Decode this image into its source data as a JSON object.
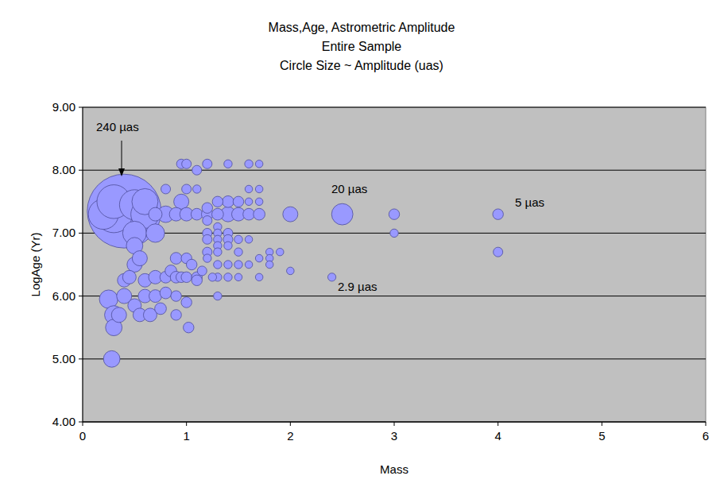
{
  "chart_data": {
    "type": "bubble",
    "title": "Mass,Age, Astrometric Amplitude",
    "subtitle": [
      "Entire Sample",
      "Circle Size ~ Amplitude (uas)"
    ],
    "x_label": "Mass",
    "y_label": "LogAge (Yr)",
    "annotations": [
      "240 µas",
      "20 µas",
      "5 µas",
      "2.9 µas"
    ],
    "xlim": [
      0,
      6
    ],
    "xticks": [
      0,
      1,
      2,
      3,
      4,
      5,
      6
    ],
    "ylim": [
      4,
      9
    ],
    "yticks": [
      {
        "value": 4,
        "label": "4.00"
      },
      {
        "value": 5,
        "label": "5.00"
      },
      {
        "value": 6,
        "label": "6.00"
      },
      {
        "value": 7,
        "label": "7.00"
      },
      {
        "value": 8,
        "label": "8.00"
      },
      {
        "value": 9,
        "label": "9.00"
      }
    ],
    "grid": true,
    "series": [
      {
        "color": "#9999ff",
        "x": [
          0.4,
          0.3,
          0.2,
          0.3,
          0.5,
          0.6,
          0.6,
          0.5,
          0.7,
          2.5,
          0.25,
          0.3,
          0.3,
          0.28,
          0.5,
          0.8,
          0.35,
          0.4,
          0.5,
          0.55,
          0.95,
          1.4,
          2.0,
          0.4,
          0.45,
          0.5,
          0.55,
          0.6,
          0.6,
          0.65,
          0.7,
          0.7,
          0.9,
          1.0,
          1.5,
          0.7,
          0.75,
          0.8,
          0.8,
          0.85,
          0.9,
          0.9,
          0.9,
          1.1,
          1.2,
          1.3,
          1.4,
          1.6,
          1.7,
          0.95,
          0.9,
          1.0,
          1.0,
          1.0,
          1.02,
          1.05,
          1.1,
          1.1,
          1.3,
          1.5,
          1.2,
          3.0,
          4.0,
          0.95,
          1.0,
          1.2,
          1.1,
          0.8,
          1.0,
          1.15,
          1.2,
          1.2,
          1.2,
          1.2,
          1.4,
          1.4,
          4.0,
          1.4,
          1.1,
          1.4,
          1.2,
          3.0,
          1.3,
          1.3,
          1.3,
          1.3,
          1.3,
          1.3,
          1.3,
          1.3,
          1.4,
          1.4,
          1.5,
          1.5,
          1.5,
          1.25,
          2.4,
          1.6,
          1.7,
          1.6,
          1.7,
          1.6,
          1.6,
          1.7,
          1.7,
          1.5,
          1.6,
          1.7,
          1.8,
          1.8,
          1.8,
          1.9,
          2.0
        ],
        "values": [
          7.35,
          7.3,
          7.3,
          7.5,
          7.45,
          7.3,
          7.5,
          7.0,
          7.0,
          7.3,
          5.95,
          5.7,
          5.5,
          5.0,
          6.8,
          7.3,
          5.7,
          6.0,
          6.5,
          6.6,
          7.5,
          7.3,
          7.3,
          6.25,
          6.3,
          5.85,
          5.7,
          6.0,
          6.25,
          5.7,
          6.3,
          7.3,
          7.3,
          7.3,
          7.3,
          6.0,
          5.8,
          6.3,
          6.05,
          6.4,
          6.3,
          6.6,
          6.0,
          7.3,
          7.3,
          7.3,
          7.5,
          7.3,
          7.3,
          6.3,
          5.7,
          6.6,
          6.3,
          5.9,
          5.5,
          6.5,
          6.3,
          6.25,
          7.5,
          7.5,
          7.4,
          7.3,
          7.3,
          8.1,
          8.1,
          8.1,
          8.0,
          7.7,
          7.7,
          6.4,
          7.2,
          7.0,
          6.9,
          6.7,
          7.0,
          6.9,
          6.7,
          8.1,
          7.7,
          6.8,
          6.6,
          7.0,
          7.1,
          7.0,
          6.9,
          6.8,
          6.7,
          6.5,
          6.3,
          6.0,
          6.5,
          6.3,
          6.9,
          6.7,
          6.5,
          6.3,
          6.3,
          8.1,
          8.1,
          7.7,
          7.7,
          6.9,
          6.5,
          6.6,
          6.3,
          6.3,
          7.5,
          7.5,
          6.7,
          6.6,
          6.5,
          6.7,
          6.4
        ],
        "sizes": [
          240,
          60,
          40,
          50,
          40,
          35,
          30,
          25,
          15,
          20,
          15,
          15,
          12,
          12,
          12,
          12,
          10,
          10,
          10,
          10,
          10,
          10,
          10,
          8,
          8,
          8,
          8,
          8,
          8,
          8,
          8,
          8,
          8,
          8,
          8,
          7,
          6,
          6,
          6,
          6,
          6,
          6,
          5,
          6,
          6,
          6,
          6,
          6,
          6,
          5,
          5,
          5,
          5,
          5,
          5,
          5,
          5,
          5,
          5,
          5,
          5,
          5,
          5,
          4,
          4,
          4,
          4,
          4,
          4,
          4,
          4,
          4,
          4,
          4,
          4,
          4,
          4,
          3,
          3,
          3,
          3,
          3,
          3,
          3,
          3,
          3,
          3,
          3,
          3,
          3,
          3,
          3,
          3,
          3,
          3,
          3,
          2.9,
          3,
          2.5,
          2.5,
          2.5,
          2.5,
          2.5,
          2.5,
          2.5,
          2.5,
          2.5,
          2.5,
          2.5,
          2.5,
          2.5,
          2.5,
          2.5
        ]
      }
    ]
  }
}
